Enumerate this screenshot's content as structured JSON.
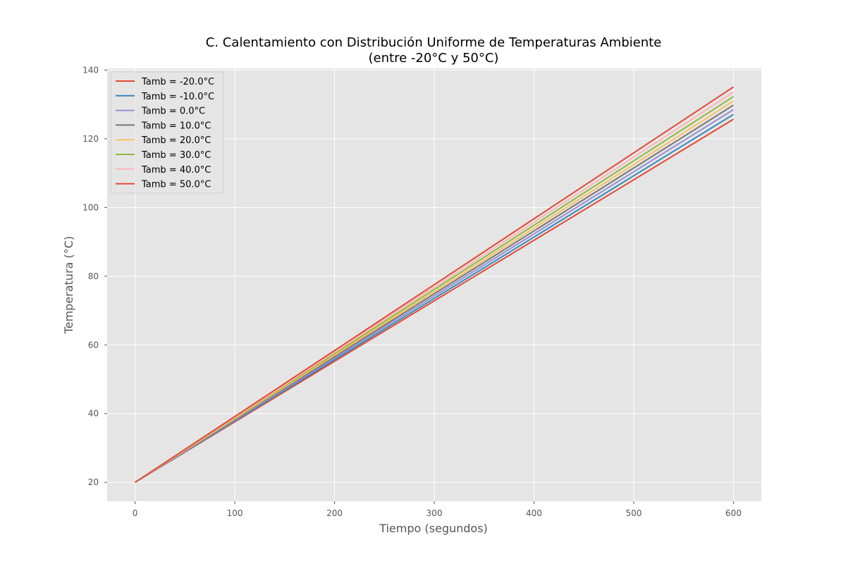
{
  "chart_data": {
    "type": "line",
    "title": "C. Calentamiento con Distribución Uniforme de Temperaturas Ambiente",
    "subtitle": "(entre -20°C y 50°C)",
    "xlabel": "Tiempo (segundos)",
    "ylabel": "Temperatura (°C)",
    "xlim": [
      -28,
      628
    ],
    "ylim": [
      14.5,
      140.5
    ],
    "xticks": [
      0,
      100,
      200,
      300,
      400,
      500,
      600
    ],
    "yticks": [
      20,
      40,
      60,
      80,
      100,
      120,
      140
    ],
    "grid": true,
    "legend": "top-left",
    "x": [
      0,
      600
    ],
    "series": [
      {
        "name": "Tamb = -20.0°C",
        "color": "#E24A33",
        "values": [
          20,
          125.7
        ]
      },
      {
        "name": "Tamb = -10.0°C",
        "color": "#348ABD",
        "values": [
          20,
          127.1
        ]
      },
      {
        "name": "Tamb = 0.0°C",
        "color": "#988ED5",
        "values": [
          20,
          128.5
        ]
      },
      {
        "name": "Tamb = 10.0°C",
        "color": "#777777",
        "values": [
          20,
          129.8
        ]
      },
      {
        "name": "Tamb = 20.0°C",
        "color": "#FBC15E",
        "values": [
          20,
          131.0
        ]
      },
      {
        "name": "Tamb = 30.0°C",
        "color": "#8EBA42",
        "values": [
          20,
          132.3
        ]
      },
      {
        "name": "Tamb = 40.0°C",
        "color": "#FFB5B8",
        "values": [
          20,
          133.6
        ]
      },
      {
        "name": "Tamb = 50.0°C",
        "color": "#E24A33",
        "values": [
          20,
          135.1
        ]
      }
    ]
  }
}
